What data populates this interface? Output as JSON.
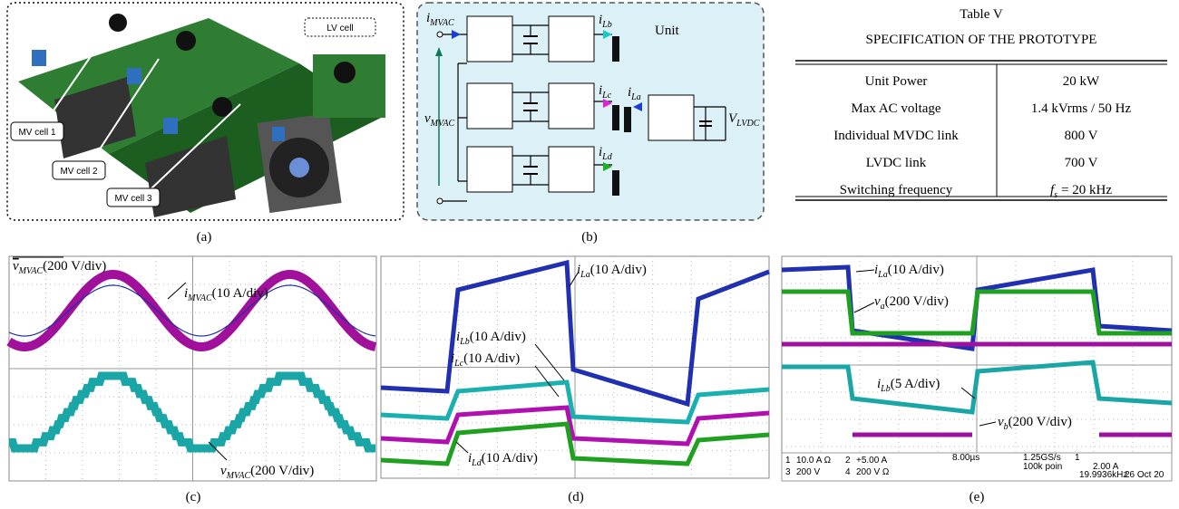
{
  "panels": {
    "a": {
      "caption": "(a)",
      "labels": [
        "LV cell",
        "MV cell 1",
        "MV cell 2",
        "MV cell 3"
      ]
    },
    "b": {
      "caption": "(b)",
      "title": "Unit",
      "labels": [
        {
          "var": "i",
          "sub": "MVAC"
        },
        {
          "var": "v",
          "sub": "MVAC"
        },
        {
          "var": "i",
          "sub": "Lb"
        },
        {
          "var": "i",
          "sub": "Lc"
        },
        {
          "var": "i",
          "sub": "Ld"
        },
        {
          "var": "i",
          "sub": "La"
        },
        {
          "var": "V",
          "sub": "LVDC"
        }
      ]
    },
    "c": {
      "caption": "(c)",
      "labels": [
        {
          "var": "v",
          "sub": "MVAC",
          "scale": "(200 V/div)"
        },
        {
          "var": "i",
          "sub": "MVAC",
          "scale": "(10 A/div)"
        },
        {
          "var": "v",
          "sub": "MVAC",
          "scale": "(200 V/div)"
        }
      ]
    },
    "d": {
      "caption": "(d)",
      "labels": [
        {
          "var": "i",
          "sub": "La",
          "scale": "(10 A/div)"
        },
        {
          "var": "i",
          "sub": "Lb",
          "scale": "(10 A/div)"
        },
        {
          "var": "i",
          "sub": "Lc",
          "scale": "(10 A/div)"
        },
        {
          "var": "i",
          "sub": "Ld",
          "scale": "(10 A/div)"
        }
      ]
    },
    "e": {
      "caption": "(e)",
      "labels": [
        {
          "var": "i",
          "sub": "La",
          "scale": "(10 A/div)"
        },
        {
          "var": "v",
          "sub": "a",
          "scale": "(200 V/div)"
        },
        {
          "var": "i",
          "sub": "Lb",
          "scale": "(5 A/div)"
        },
        {
          "var": "v",
          "sub": "b",
          "scale": "(200 V/div)"
        }
      ],
      "status": [
        "1",
        "10.0 A Ω",
        "2",
        "+5.00 A",
        "3",
        "200 V",
        "4",
        "200 V Ω",
        "8.00µs",
        "1.25GS/s",
        "100k poin",
        "1",
        "2.00 A",
        "19.9936kHz",
        "26 Oct 20"
      ]
    }
  },
  "table": {
    "number": "Table V",
    "title": "SPECIFICATION OF THE PROTOTYPE",
    "rows": [
      [
        "Unit Power",
        "20 kW"
      ],
      [
        "Max AC voltage",
        "1.4 kVrms / 50 Hz"
      ],
      [
        "Individual MVDC link",
        "800 V"
      ],
      [
        "LVDC link",
        "700 V"
      ],
      [
        "Switching frequency",
        {
          "var": "f",
          "sub": "s",
          "text": "= 20 kHz"
        }
      ]
    ]
  }
}
